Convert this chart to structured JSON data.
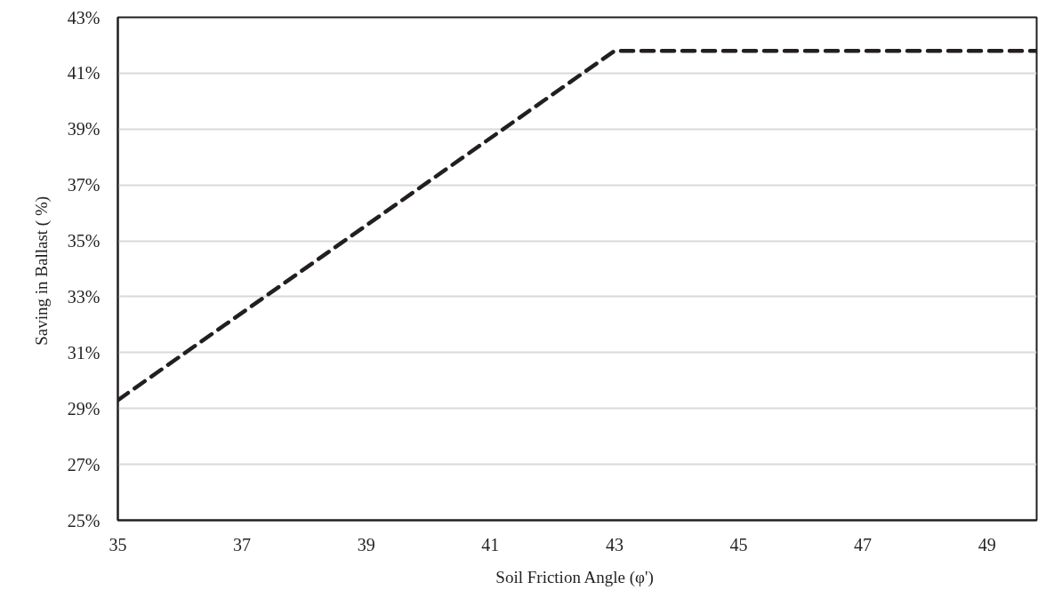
{
  "chart_data": {
    "type": "line",
    "xlabel": "Soil Friction Angle  (φ')",
    "ylabel": "Saving in Ballast  ( %)",
    "series": [
      {
        "color": "#231f20",
        "x": [
          35,
          43,
          49.8
        ],
        "values": [
          29.3,
          41.8,
          41.8
        ]
      }
    ],
    "xlim": [
      35,
      49.8
    ],
    "xticks": [
      35,
      37,
      39,
      41,
      43,
      45,
      47,
      49
    ],
    "ylim": [
      25,
      43
    ],
    "yticks": [
      {
        "value": 25,
        "label": "25%"
      },
      {
        "value": 27,
        "label": "27%"
      },
      {
        "value": 29,
        "label": "29%"
      },
      {
        "value": 31,
        "label": "31%"
      },
      {
        "value": 33,
        "label": "33%"
      },
      {
        "value": 35,
        "label": "35%"
      },
      {
        "value": 37,
        "label": "37%"
      },
      {
        "value": 39,
        "label": "39%"
      },
      {
        "value": 41,
        "label": "41%"
      },
      {
        "value": 43,
        "label": "43%"
      }
    ],
    "grid": "y",
    "line_style": "dashed",
    "marker": "none"
  }
}
